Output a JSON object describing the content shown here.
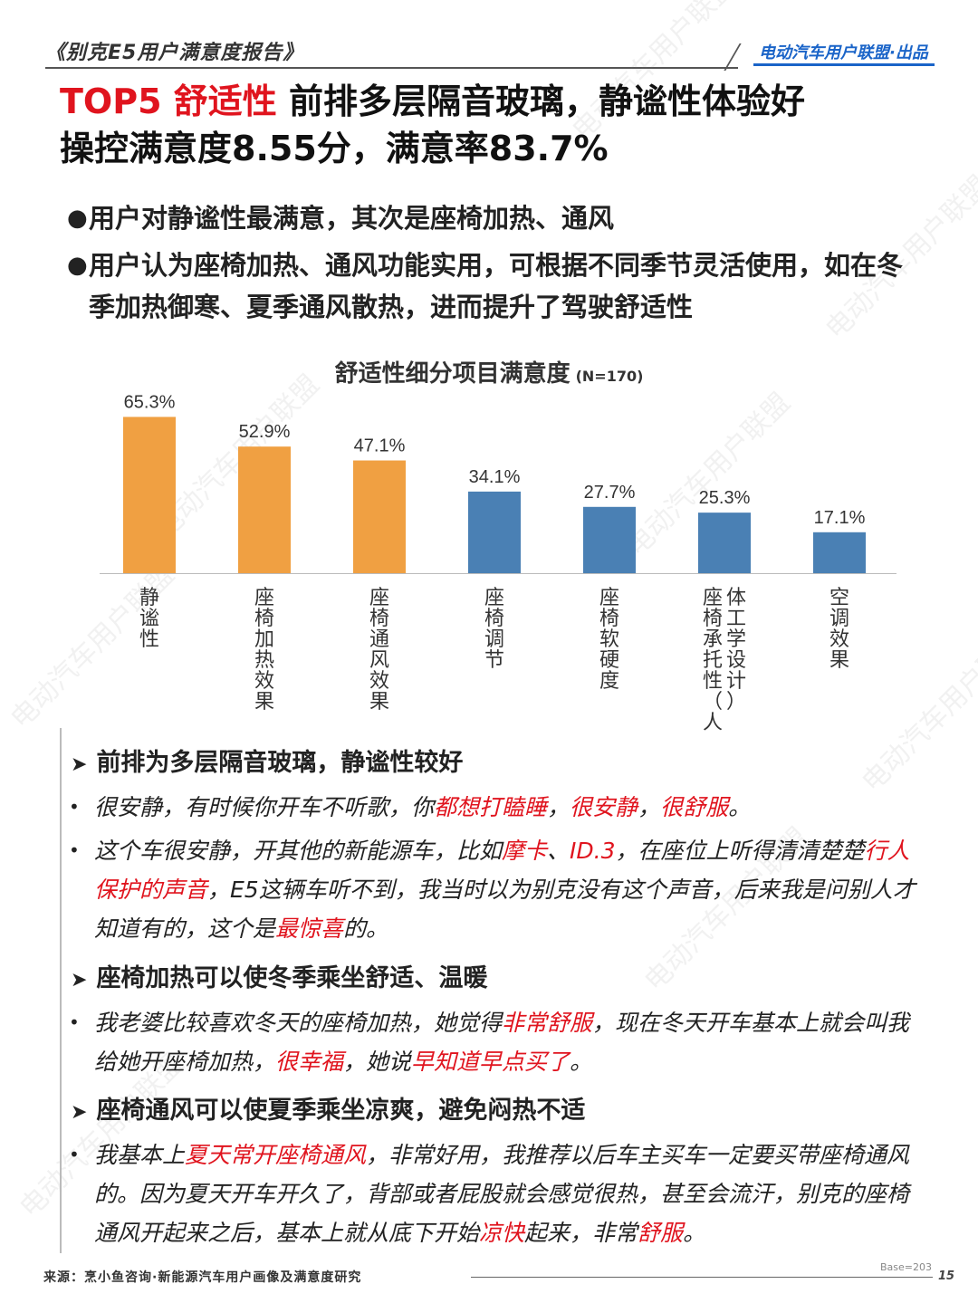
{
  "header": {
    "report_title": "《别克E5用户满意度报告》",
    "publisher": "电动汽车用户联盟·出品"
  },
  "headline": {
    "tag": "TOP5 舒适性",
    "line1": "前排多层隔音玻璃，静谧性体验好",
    "line2": "操控满意度8.55分，满意率83.7%"
  },
  "bullets": [
    "用户对静谧性最满意，其次是座椅加热、通风",
    "用户认为座椅加热、通风功能实用，可根据不同季节灵活使用，如在冬季加热御寒、夏季通风散热，进而提升了驾驶舒适性"
  ],
  "chart_title": "舒适性细分项目满意度",
  "chart_sample": "(N=170)",
  "chart_data": {
    "type": "bar",
    "title": "舒适性细分项目满意度 (N=170)",
    "categories": [
      "静谧性",
      "座椅加热效果",
      "座椅通风效果",
      "座椅调节",
      "座椅软硬度",
      "座椅承托性（人体工学设计）",
      "空调效果"
    ],
    "values": [
      65.3,
      52.9,
      47.1,
      34.1,
      27.7,
      25.3,
      17.1
    ],
    "value_labels": [
      "65.3%",
      "52.9%",
      "47.1%",
      "34.1%",
      "27.7%",
      "25.3%",
      "17.1%"
    ],
    "ylim": [
      0,
      70
    ],
    "colors": [
      "#f0a042",
      "#f0a042",
      "#f0a042",
      "#4a80b4",
      "#4a80b4",
      "#4a80b4",
      "#4a80b4"
    ],
    "label_lines": [
      [
        "静谧性"
      ],
      [
        "座椅加热效果"
      ],
      [
        "座椅通风效果"
      ],
      [
        "座椅调节"
      ],
      [
        "座椅软硬度"
      ],
      [
        "座椅承托性（人",
        "体工学设计）"
      ],
      [
        "空调效果"
      ]
    ],
    "grid": false,
    "legend": "none"
  },
  "sections": [
    {
      "heading": "前排为多层隔音玻璃，静谧性较好",
      "quotes": [
        [
          {
            "t": "很安静，有时候你开车不听歌，你",
            "hl": false
          },
          {
            "t": "都想打瞌睡",
            "hl": true
          },
          {
            "t": "，",
            "hl": false
          },
          {
            "t": "很安静",
            "hl": true
          },
          {
            "t": "，",
            "hl": false
          },
          {
            "t": "很舒服",
            "hl": true
          },
          {
            "t": "。",
            "hl": false
          }
        ],
        [
          {
            "t": "这个车很安静，开其他的新能源车，比如",
            "hl": false
          },
          {
            "t": "摩卡",
            "hl": true
          },
          {
            "t": "、",
            "hl": false
          },
          {
            "t": "ID.3",
            "hl": true
          },
          {
            "t": "，在座位上听得清清楚楚",
            "hl": false
          },
          {
            "t": "行人保护的声音",
            "hl": true
          },
          {
            "t": "，E5这辆车听不到，我当时以为别克没有这个声音，后来我是问别人才知道有的，这个是",
            "hl": false
          },
          {
            "t": "最惊喜",
            "hl": true
          },
          {
            "t": "的。",
            "hl": false
          }
        ]
      ]
    },
    {
      "heading": "座椅加热可以使冬季乘坐舒适、温暖",
      "quotes": [
        [
          {
            "t": "我老婆比较喜欢冬天的座椅加热，她觉得",
            "hl": false
          },
          {
            "t": "非常舒服",
            "hl": true
          },
          {
            "t": "，现在冬天开车基本上就会叫我给她开座椅加热，",
            "hl": false
          },
          {
            "t": "很幸福",
            "hl": true
          },
          {
            "t": "，她说",
            "hl": false
          },
          {
            "t": "早知道早点买了",
            "hl": true
          },
          {
            "t": "。",
            "hl": false
          }
        ]
      ]
    },
    {
      "heading": "座椅通风可以使夏季乘坐凉爽，避免闷热不适",
      "quotes": [
        [
          {
            "t": "我基本上",
            "hl": false
          },
          {
            "t": "夏天常开座椅通风",
            "hl": true
          },
          {
            "t": "，非常好用，我推荐以后车主买车一定要买带座椅通风的。因为夏天开车开久了，背部或者屁股就会感觉很热，甚至会流汗，别克的座椅通风开起来之后，基本上就从底下开始",
            "hl": false
          },
          {
            "t": "凉快",
            "hl": true
          },
          {
            "t": "起来，非常",
            "hl": false
          },
          {
            "t": "舒服",
            "hl": true
          },
          {
            "t": "。",
            "hl": false
          }
        ]
      ]
    }
  ],
  "footer": {
    "source": "来源：烹小鱼咨询·新能源汽车用户画像及满意度研究",
    "base": "Base=203",
    "page": "15"
  },
  "watermark": "电动汽车用户联盟"
}
